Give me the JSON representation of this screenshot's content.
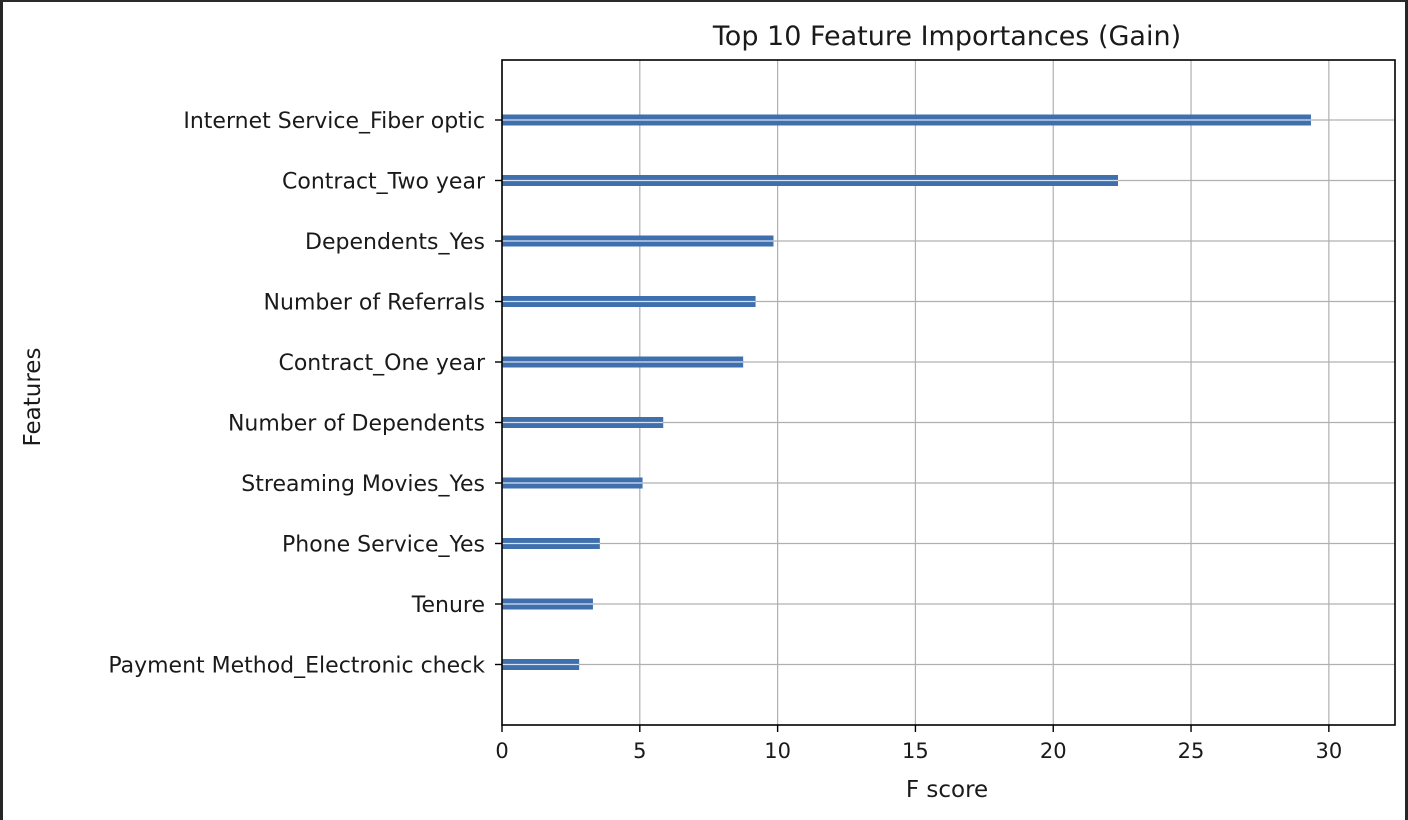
{
  "colors": {
    "bar": "#3f6fad",
    "bar_highlight": "#d6e2f2",
    "grid": "#b0b0b0",
    "axis": "#000000",
    "text": "#1a1a1a",
    "frame": "#262626"
  },
  "chart_data": {
    "type": "bar",
    "orientation": "horizontal",
    "title": "Top 10 Feature Importances (Gain)",
    "xlabel": "F score",
    "ylabel": "Features",
    "categories": [
      "Internet Service_Fiber optic",
      "Contract_Two year",
      "Dependents_Yes",
      "Number of Referrals",
      "Contract_One year",
      "Number of Dependents",
      "Streaming Movies_Yes",
      "Phone Service_Yes",
      "Tenure",
      "Payment Method_Electronic check"
    ],
    "values": [
      29.35,
      22.35,
      9.85,
      9.2,
      8.75,
      5.85,
      5.1,
      3.55,
      3.3,
      2.8
    ],
    "xlim": [
      0,
      32.4
    ],
    "xticks": [
      0,
      5,
      10,
      15,
      20,
      25,
      30
    ],
    "xtick_labels": [
      "0",
      "5",
      "10",
      "15",
      "20",
      "25",
      "30"
    ],
    "grid": true
  }
}
